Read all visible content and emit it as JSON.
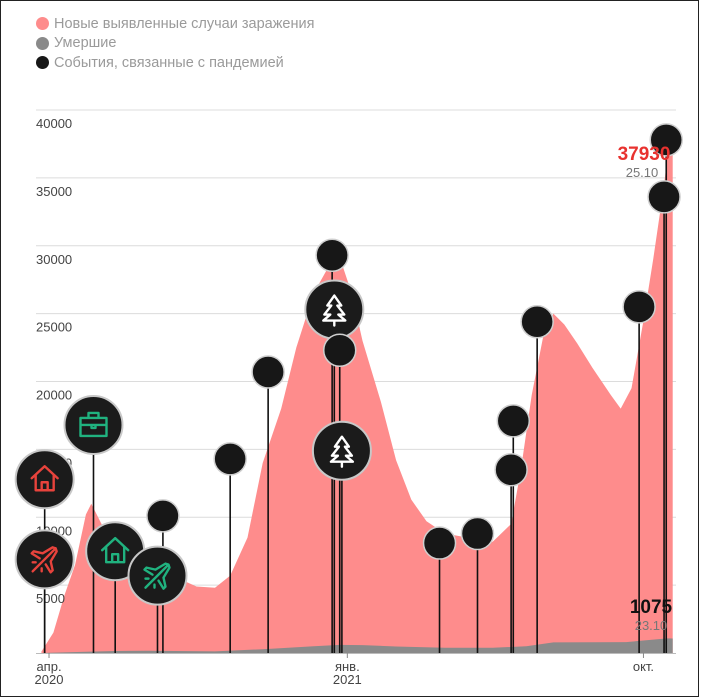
{
  "legend": {
    "cases": "Новые выявленные случаи заражения",
    "deaths": "Умершие",
    "events": "События, связанные с пандемией"
  },
  "colors": {
    "cases": "#fe8c8c",
    "deaths": "#8a8a8a",
    "events": "#171717",
    "accent_red": "#e8433c",
    "accent_green": "#20b27f"
  },
  "annotations": {
    "peak_cases_value": "37930",
    "peak_cases_date": "25.10",
    "peak_deaths_value": "1075",
    "peak_deaths_date": "23.10"
  },
  "chart_data": {
    "type": "area",
    "ylim": [
      0,
      40000
    ],
    "yticks": [
      5000,
      10000,
      15000,
      20000,
      25000,
      30000,
      35000,
      40000
    ],
    "ytick_labels": [
      "5000",
      "10000",
      "15000",
      "20000",
      "25000",
      "30000",
      "35000",
      "40000"
    ],
    "xlim": [
      "2020-03-20",
      "2021-10-31"
    ],
    "x_ticks": [
      {
        "date": "2020-04-01",
        "label": "апр.",
        "sublabel": "2020"
      },
      {
        "date": "2021-01-01",
        "label": "янв.",
        "sublabel": "2021"
      },
      {
        "date": "2021-10-01",
        "label": "окт.",
        "sublabel": ""
      }
    ],
    "series": [
      {
        "name": "Новые выявленные случаи заражения",
        "points": [
          [
            "2020-03-25",
            100
          ],
          [
            "2020-04-05",
            1500
          ],
          [
            "2020-04-15",
            4200
          ],
          [
            "2020-04-25",
            6500
          ],
          [
            "2020-05-05",
            10200
          ],
          [
            "2020-05-10",
            11000
          ],
          [
            "2020-05-20",
            9400
          ],
          [
            "2020-06-01",
            9000
          ],
          [
            "2020-06-10",
            8700
          ],
          [
            "2020-06-20",
            7800
          ],
          [
            "2020-07-01",
            6700
          ],
          [
            "2020-07-15",
            6000
          ],
          [
            "2020-08-01",
            5400
          ],
          [
            "2020-08-15",
            4900
          ],
          [
            "2020-09-01",
            4800
          ],
          [
            "2020-09-15",
            5700
          ],
          [
            "2020-10-01",
            8500
          ],
          [
            "2020-10-15",
            14000
          ],
          [
            "2020-11-01",
            18000
          ],
          [
            "2020-11-15",
            22500
          ],
          [
            "2020-12-01",
            26500
          ],
          [
            "2020-12-15",
            28500
          ],
          [
            "2020-12-24",
            29400
          ],
          [
            "2021-01-05",
            26500
          ],
          [
            "2021-01-15",
            23000
          ],
          [
            "2021-02-01",
            18500
          ],
          [
            "2021-02-15",
            14200
          ],
          [
            "2021-03-01",
            11300
          ],
          [
            "2021-03-15",
            9700
          ],
          [
            "2021-04-01",
            8800
          ],
          [
            "2021-04-15",
            8600
          ],
          [
            "2021-05-01",
            8300
          ],
          [
            "2021-05-15",
            8200
          ],
          [
            "2021-06-01",
            9500
          ],
          [
            "2021-06-10",
            13500
          ],
          [
            "2021-06-20",
            19000
          ],
          [
            "2021-07-01",
            23500
          ],
          [
            "2021-07-10",
            25000
          ],
          [
            "2021-07-20",
            24200
          ],
          [
            "2021-08-01",
            22800
          ],
          [
            "2021-08-15",
            21000
          ],
          [
            "2021-09-01",
            19000
          ],
          [
            "2021-09-10",
            18000
          ],
          [
            "2021-09-20",
            19500
          ],
          [
            "2021-10-01",
            24500
          ],
          [
            "2021-10-10",
            29000
          ],
          [
            "2021-10-20",
            34500
          ],
          [
            "2021-10-25",
            37930
          ],
          [
            "2021-10-28",
            37500
          ]
        ]
      },
      {
        "name": "Умершие",
        "points": [
          [
            "2020-03-25",
            0
          ],
          [
            "2020-05-01",
            80
          ],
          [
            "2020-06-01",
            150
          ],
          [
            "2020-07-01",
            160
          ],
          [
            "2020-09-01",
            120
          ],
          [
            "2020-10-15",
            280
          ],
          [
            "2020-12-01",
            500
          ],
          [
            "2020-12-25",
            600
          ],
          [
            "2021-01-15",
            580
          ],
          [
            "2021-02-15",
            480
          ],
          [
            "2021-04-01",
            380
          ],
          [
            "2021-05-15",
            380
          ],
          [
            "2021-06-15",
            500
          ],
          [
            "2021-07-10",
            780
          ],
          [
            "2021-08-15",
            790
          ],
          [
            "2021-09-15",
            800
          ],
          [
            "2021-10-23",
            1075
          ],
          [
            "2021-10-28",
            1070
          ]
        ]
      }
    ],
    "events": [
      {
        "date": "2020-03-28",
        "y": 12800,
        "icon": "home",
        "color": "red"
      },
      {
        "date": "2020-03-28",
        "y": 6900,
        "icon": "plane",
        "color": "red"
      },
      {
        "date": "2020-05-12",
        "y": 16800,
        "icon": "briefcase",
        "color": "green"
      },
      {
        "date": "2020-06-01",
        "y": 7500,
        "icon": "home",
        "color": "green"
      },
      {
        "date": "2020-07-10",
        "y": 5700,
        "icon": "plane",
        "color": "green"
      },
      {
        "date": "2020-07-15",
        "y": 10100,
        "icon": "",
        "color": ""
      },
      {
        "date": "2020-09-15",
        "y": 14300,
        "icon": "",
        "color": ""
      },
      {
        "date": "2020-10-20",
        "y": 20700,
        "icon": "",
        "color": ""
      },
      {
        "date": "2020-12-18",
        "y": 29300,
        "icon": "",
        "color": ""
      },
      {
        "date": "2020-12-20",
        "y": 25300,
        "icon": "tree",
        "color": "white"
      },
      {
        "date": "2020-12-25",
        "y": 22300,
        "icon": "",
        "color": ""
      },
      {
        "date": "2020-12-27",
        "y": 14900,
        "icon": "tree",
        "color": "white"
      },
      {
        "date": "2021-03-27",
        "y": 8100,
        "icon": "",
        "color": ""
      },
      {
        "date": "2021-05-01",
        "y": 8800,
        "icon": "",
        "color": ""
      },
      {
        "date": "2021-06-01",
        "y": 13500,
        "icon": "",
        "color": ""
      },
      {
        "date": "2021-06-03",
        "y": 17100,
        "icon": "",
        "color": ""
      },
      {
        "date": "2021-06-25",
        "y": 24400,
        "icon": "",
        "color": ""
      },
      {
        "date": "2021-09-27",
        "y": 25500,
        "icon": "",
        "color": ""
      },
      {
        "date": "2021-10-20",
        "y": 33600,
        "icon": "",
        "color": ""
      },
      {
        "date": "2021-10-22",
        "y": 37800,
        "icon": "",
        "color": ""
      }
    ]
  }
}
